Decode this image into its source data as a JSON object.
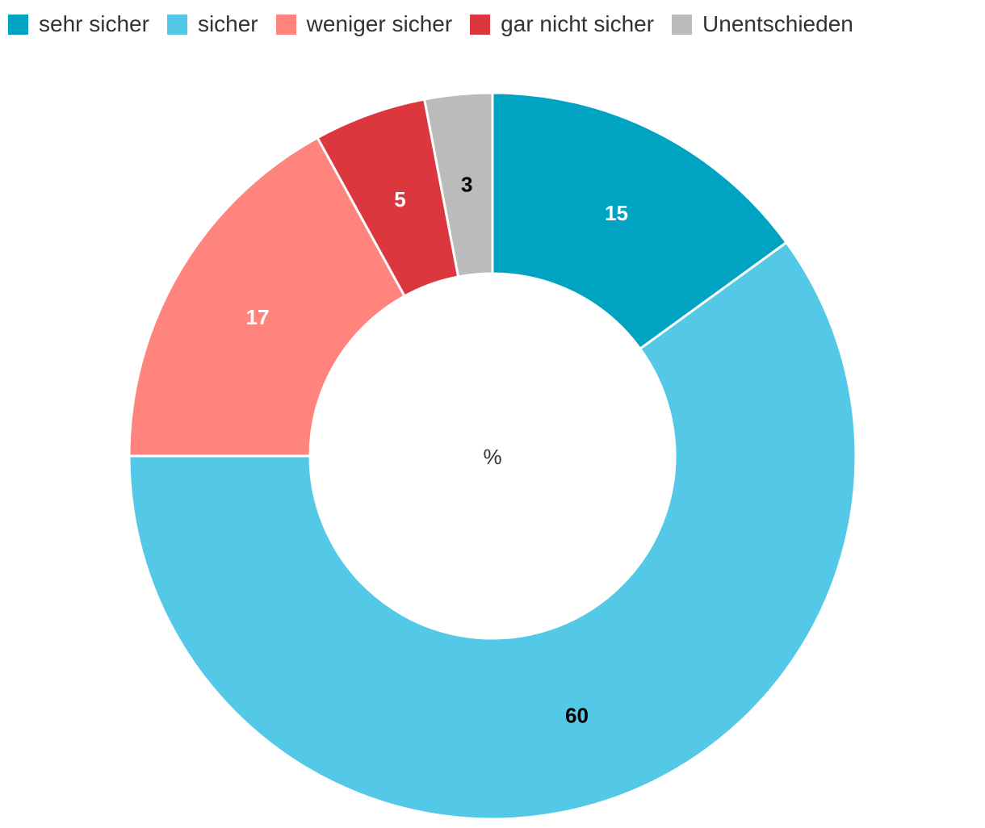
{
  "chart_data": {
    "type": "pie",
    "variant": "donut",
    "unit_label": "%",
    "legend_position": "top-left",
    "categories": [
      "sehr sicher",
      "sicher",
      "weniger sicher",
      "gar nicht sicher",
      "Unentschieden"
    ],
    "values": [
      15,
      60,
      17,
      5,
      3
    ],
    "colors": [
      "#00A3C2",
      "#54C9E7",
      "#FF847E",
      "#DC363F",
      "#BBBBBB"
    ],
    "label_colors": [
      "#ffffff",
      "#000000",
      "#ffffff",
      "#ffffff",
      "#000000"
    ]
  }
}
